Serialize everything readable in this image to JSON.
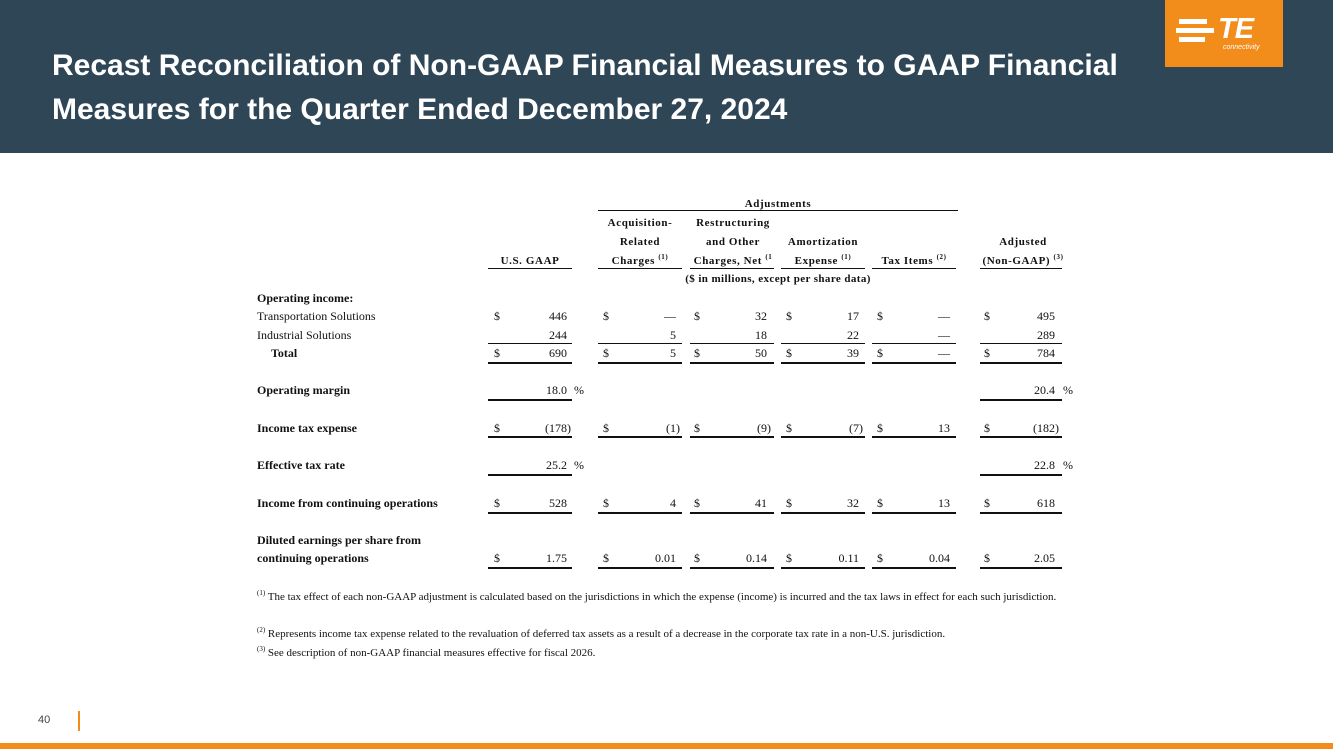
{
  "title": "Recast Reconciliation of Non-GAAP Financial Measures to GAAP Financial Measures for the Quarter Ended December 27, 2024",
  "logo": {
    "word": "TE",
    "sub": "connectivity"
  },
  "headers": {
    "adjustments": "Adjustments",
    "usgaap": "U.S. GAAP",
    "acq_l1": "Acquisition-",
    "acq_l2": "Related",
    "acq_l3": "Charges",
    "acq_sup": "(1)",
    "rest_l1": "Restructuring",
    "rest_l2": "and Other",
    "rest_l3": "Charges, Net",
    "rest_sup": "(1",
    "amort_l1": "Amortization",
    "amort_l2": "Expense",
    "amort_sup": "(1)",
    "tax": "Tax Items",
    "tax_sup": "(2)",
    "adj_l1": "Adjusted",
    "adj_l2": "(Non-GAAP)",
    "adj_sup": "(3)",
    "units": "($ in millions, except per share data)"
  },
  "currency": "$",
  "percent": "%",
  "rows": {
    "operating_income": "Operating income:",
    "transportation": {
      "label": "Transportation Solutions",
      "v": [
        "446",
        "—",
        "32",
        "17",
        "—",
        "495"
      ]
    },
    "industrial": {
      "label": "Industrial Solutions",
      "v": [
        "244",
        "5",
        "18",
        "22",
        "—",
        "289"
      ]
    },
    "total": {
      "label": "Total",
      "v": [
        "690",
        "5",
        "50",
        "39",
        "—",
        "784"
      ]
    },
    "op_margin": {
      "label": "Operating margin",
      "gaap": "18.0",
      "adjusted": "20.4"
    },
    "tax_expense": {
      "label": "Income tax expense",
      "v": [
        "(178)",
        "(1)",
        "(9)",
        "(7)",
        "13",
        "(182)"
      ]
    },
    "eff_rate": {
      "label": "Effective tax rate",
      "gaap": "25.2",
      "adjusted": "22.8"
    },
    "income_cont": {
      "label": "Income from continuing operations",
      "v": [
        "528",
        "4",
        "41",
        "32",
        "13",
        "618"
      ]
    },
    "eps": {
      "label_l1": "Diluted earnings per share from",
      "label_l2": "continuing operations",
      "v": [
        "1.75",
        "0.01",
        "0.14",
        "0.11",
        "0.04",
        "2.05"
      ]
    }
  },
  "footnotes": {
    "f1_mark": "(1)",
    "f1": "The tax effect of each non-GAAP adjustment is calculated based on the jurisdictions in which the expense (income) is incurred and the tax laws in effect for each such jurisdiction.",
    "f2_mark": "(2)",
    "f2": "Represents income tax expense related to the revaluation of deferred tax assets as a result of a decrease in the corporate tax rate in a non-U.S. jurisdiction.",
    "f3_mark": "(3)",
    "f3": "See description of non-GAAP financial measures effective for fiscal 2026."
  },
  "page_number": "40",
  "colors": {
    "header_bg": "#2e4656",
    "accent": "#f28c1b"
  }
}
